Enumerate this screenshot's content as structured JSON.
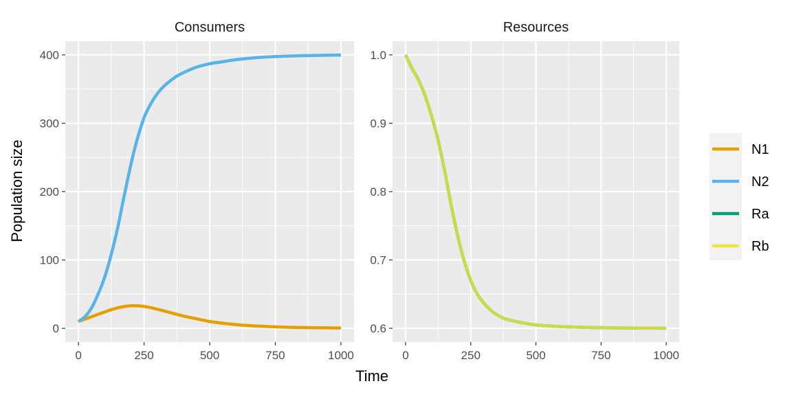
{
  "chart_data": {
    "type": "line",
    "xlabel": "Time",
    "ylabel": "Population size",
    "legend": {
      "placement": "right",
      "entries": [
        {
          "name": "N1",
          "color": "#E69F00"
        },
        {
          "name": "N2",
          "color": "#56B4E9"
        },
        {
          "name": "Ra",
          "color": "#009E73"
        },
        {
          "name": "Rb",
          "color": "#F0E442"
        }
      ]
    },
    "panels": [
      {
        "title": "Consumers",
        "xlim": [
          -50,
          1050
        ],
        "ylim": [
          -20,
          420
        ],
        "x_ticks": [
          0,
          250,
          500,
          750,
          1000
        ],
        "x_tick_labels": [
          "0",
          "250",
          "500",
          "750",
          "1000"
        ],
        "y_ticks": [
          0,
          100,
          200,
          300,
          400
        ],
        "y_tick_labels": [
          "0",
          "100",
          "200",
          "300",
          "400"
        ],
        "series": [
          {
            "name": "N1",
            "color": "#E69F00",
            "x": [
              0,
              50,
              100,
              150,
              200,
              250,
              300,
              350,
              400,
              450,
              500,
              550,
              600,
              650,
              700,
              750,
              800,
              850,
              900,
              950,
              1000
            ],
            "y": [
              10,
              17,
              24,
              30,
              33,
              32,
              28,
              23,
              18,
              14,
              10,
              7.5,
              5.5,
              4,
              3,
              2.2,
              1.6,
              1.2,
              0.9,
              0.7,
              0.5
            ]
          },
          {
            "name": "N2",
            "color": "#56B4E9",
            "x": [
              0,
              25,
              50,
              75,
              100,
              125,
              150,
              175,
              200,
              225,
              250,
              275,
              300,
              325,
              350,
              375,
              400,
              450,
              500,
              550,
              600,
              650,
              700,
              750,
              800,
              850,
              900,
              950,
              1000
            ],
            "y": [
              10,
              17,
              30,
              50,
              75,
              108,
              148,
              195,
              240,
              278,
              308,
              328,
              343,
              354,
              362,
              369,
              374,
              382,
              387,
              390,
              393,
              395,
              396.5,
              397.5,
              398.3,
              398.8,
              399.2,
              399.5,
              399.7
            ]
          }
        ]
      },
      {
        "title": "Resources",
        "xlim": [
          -50,
          1050
        ],
        "ylim": [
          0.58,
          1.02
        ],
        "x_ticks": [
          0,
          250,
          500,
          750,
          1000
        ],
        "x_tick_labels": [
          "0",
          "250",
          "500",
          "750",
          "1000"
        ],
        "y_ticks": [
          0.6,
          0.7,
          0.8,
          0.9,
          1.0
        ],
        "y_tick_labels": [
          "0.6",
          "0.7",
          "0.8",
          "0.9",
          "1.0"
        ],
        "series": [
          {
            "name": "Ra",
            "color": "#009E73",
            "x": [
              0,
              25,
              50,
              75,
              100,
              125,
              150,
              175,
              200,
              225,
              250,
              275,
              300,
              325,
              350,
              375,
              400,
              450,
              500,
              550,
              600,
              650,
              700,
              750,
              800,
              850,
              900,
              950,
              1000
            ],
            "y": [
              1.0,
              0.98,
              0.963,
              0.94,
              0.91,
              0.875,
              0.83,
              0.78,
              0.735,
              0.698,
              0.67,
              0.65,
              0.637,
              0.627,
              0.62,
              0.615,
              0.612,
              0.608,
              0.605,
              0.6035,
              0.6025,
              0.6018,
              0.6013,
              0.601,
              0.6007,
              0.6005,
              0.6004,
              0.6003,
              0.6002
            ]
          },
          {
            "name": "Rb",
            "color": "#F0E442",
            "x": [
              0,
              25,
              50,
              75,
              100,
              125,
              150,
              175,
              200,
              225,
              250,
              275,
              300,
              325,
              350,
              375,
              400,
              450,
              500,
              550,
              600,
              650,
              700,
              750,
              800,
              850,
              900,
              950,
              1000
            ],
            "y": [
              1.0,
              0.98,
              0.963,
              0.94,
              0.91,
              0.875,
              0.83,
              0.78,
              0.735,
              0.698,
              0.67,
              0.65,
              0.637,
              0.627,
              0.62,
              0.615,
              0.612,
              0.608,
              0.605,
              0.6035,
              0.6025,
              0.6018,
              0.6013,
              0.601,
              0.6007,
              0.6005,
              0.6004,
              0.6003,
              0.6002
            ]
          }
        ]
      }
    ]
  }
}
